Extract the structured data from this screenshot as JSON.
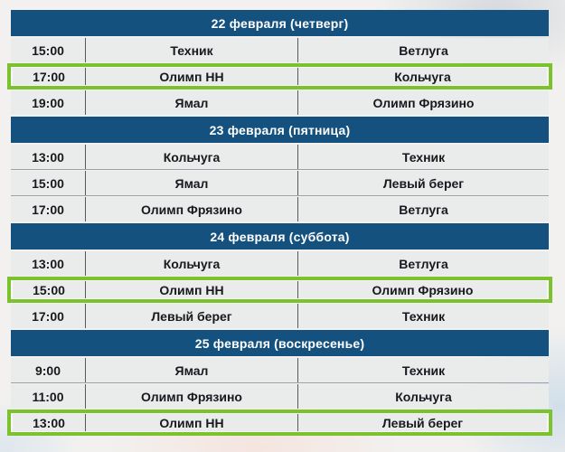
{
  "colors": {
    "header_blue": "#14517E",
    "highlight_green": "#7CC22F",
    "row_background": "#EAECEB",
    "divider_gray": "#555B60",
    "text_dark": "#16191D",
    "header_text": "#FFFFFF"
  },
  "schedule": {
    "days": [
      {
        "date_label": "22 февраля (четверг)",
        "matches": [
          {
            "time": "15:00",
            "home": "Техник",
            "away": "Ветлуга",
            "highlighted": false
          },
          {
            "time": "17:00",
            "home": "Олимп НН",
            "away": "Кольчуга",
            "highlighted": true
          },
          {
            "time": "19:00",
            "home": "Ямал",
            "away": "Олимп Фрязино",
            "highlighted": false
          }
        ]
      },
      {
        "date_label": "23 февраля (пятница)",
        "matches": [
          {
            "time": "13:00",
            "home": "Кольчуга",
            "away": "Техник",
            "highlighted": false
          },
          {
            "time": "15:00",
            "home": "Ямал",
            "away": "Левый берег",
            "highlighted": false
          },
          {
            "time": "17:00",
            "home": "Олимп Фрязино",
            "away": "Ветлуга",
            "highlighted": false
          }
        ]
      },
      {
        "date_label": "24 февраля (суббота)",
        "matches": [
          {
            "time": "13:00",
            "home": "Кольчуга",
            "away": "Ветлуга",
            "highlighted": false
          },
          {
            "time": "15:00",
            "home": "Олимп НН",
            "away": "Олимп Фрязино",
            "highlighted": true
          },
          {
            "time": "17:00",
            "home": "Левый берег",
            "away": "Техник",
            "highlighted": false
          }
        ]
      },
      {
        "date_label": "25 февраля (воскресенье)",
        "matches": [
          {
            "time": "9:00",
            "home": "Ямал",
            "away": "Техник",
            "highlighted": false
          },
          {
            "time": "11:00",
            "home": "Олимп Фрязино",
            "away": "Кольчуга",
            "highlighted": false
          },
          {
            "time": "13:00",
            "home": "Олимп НН",
            "away": "Левый берег",
            "highlighted": true
          }
        ]
      }
    ]
  }
}
